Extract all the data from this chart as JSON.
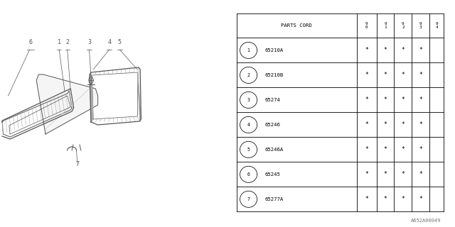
{
  "background_color": "#ffffff",
  "watermark": "A652A00049",
  "table": {
    "header_label": "PARTS CORD",
    "year_cols": [
      "9\n0",
      "9\n1",
      "9\n2",
      "9\n3",
      "9\n4"
    ],
    "rows": [
      [
        "65210A",
        "*",
        "*",
        "*",
        "*",
        ""
      ],
      [
        "65210B",
        "*",
        "*",
        "*",
        "*",
        ""
      ],
      [
        "65274",
        "*",
        "*",
        "*",
        "*",
        ""
      ],
      [
        "65246",
        "*",
        "*",
        "*",
        "*",
        ""
      ],
      [
        "65246A",
        "*",
        "*",
        "*",
        "*",
        ""
      ],
      [
        "65245",
        "*",
        "*",
        "*",
        "*",
        ""
      ],
      [
        "65277A",
        "*",
        "*",
        "*",
        "*",
        ""
      ]
    ],
    "circled_numbers": [
      "1",
      "2",
      "3",
      "4",
      "5",
      "6",
      "7"
    ]
  }
}
